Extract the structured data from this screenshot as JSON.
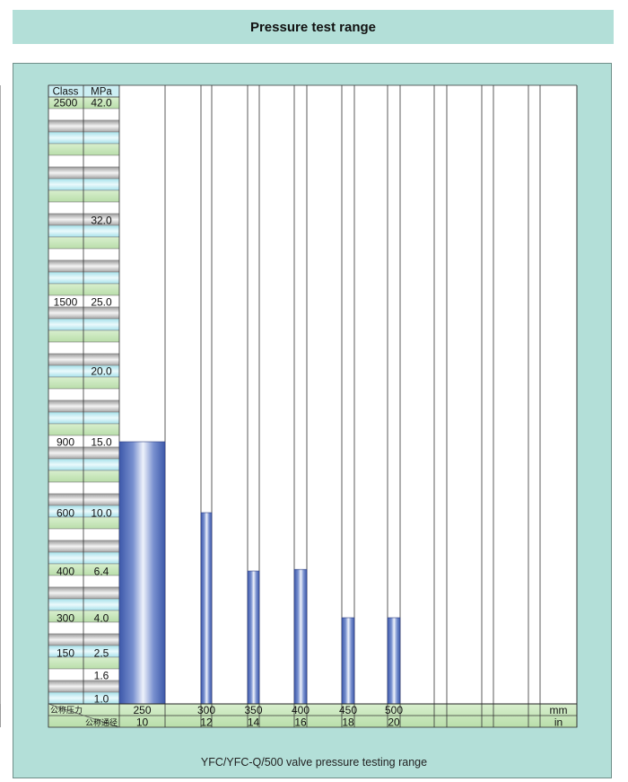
{
  "header": {
    "title": "Pressure test range"
  },
  "caption": "YFC/YFC-Q/500 valve pressure testing range",
  "colors": {
    "background": "#b3dfd8",
    "bar": "#4a63b2",
    "highlight": "#eef2fb",
    "row_green": "#b6dea3",
    "row_cyan": "#cceef3",
    "row_grey": "#bdbdbd"
  },
  "chart_data": {
    "type": "bar",
    "title": "Pressure test range",
    "y_headers": {
      "class": "Class",
      "mpa": "MPa"
    },
    "x_headers": {
      "pressure_cn": "公称压力",
      "diameter_cn": "公称通径",
      "mm_unit": "mm",
      "in_unit": "in"
    },
    "ylabels": [
      {
        "class": "2500",
        "mpa": "42.0"
      },
      {
        "class": "",
        "mpa": "32.0"
      },
      {
        "class": "1500",
        "mpa": "25.0"
      },
      {
        "class": "",
        "mpa": "20.0"
      },
      {
        "class": "900",
        "mpa": "15.0"
      },
      {
        "class": "600",
        "mpa": "10.0"
      },
      {
        "class": "400",
        "mpa": "6.4"
      },
      {
        "class": "300",
        "mpa": "4.0"
      },
      {
        "class": "150",
        "mpa": "2.5"
      },
      {
        "class": "",
        "mpa": "1.6"
      },
      {
        "class": "",
        "mpa": "1.0"
      }
    ],
    "categories_mm": [
      "250",
      "300",
      "350",
      "400",
      "450",
      "500"
    ],
    "categories_in": [
      "10",
      "12",
      "14",
      "16",
      "18",
      "20"
    ],
    "values_mpa": [
      15.0,
      10.0,
      6.4,
      6.5,
      4.0,
      4.0
    ],
    "empty_columns": 4
  }
}
